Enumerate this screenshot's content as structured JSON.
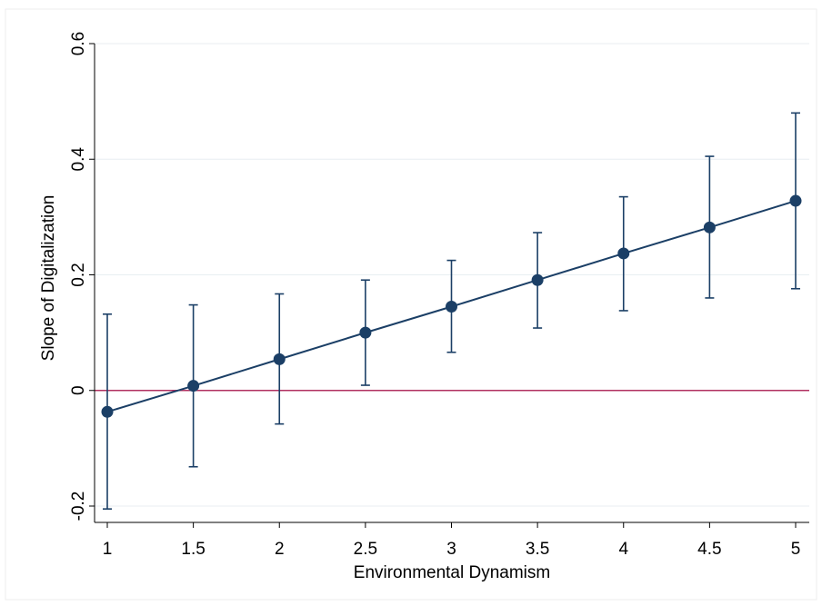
{
  "chart_data": {
    "type": "scatter",
    "title": "",
    "xlabel": "Environmental Dynamism",
    "ylabel": "Slope of Digitalization",
    "xlim": [
      1,
      5
    ],
    "ylim": [
      -0.2,
      0.6
    ],
    "x_ticks": [
      1,
      1.5,
      2,
      2.5,
      3,
      3.5,
      4,
      4.5,
      5
    ],
    "x_tick_labels": [
      "1",
      "1.5",
      "2",
      "2.5",
      "3",
      "3.5",
      "4",
      "4.5",
      "5"
    ],
    "y_ticks": [
      -0.2,
      0,
      0.2,
      0.4,
      0.6
    ],
    "y_tick_labels": [
      "-0.2",
      "0",
      "0.2",
      "0.4",
      "0.6"
    ],
    "grid": true,
    "reference_line": {
      "y": 0,
      "color": "#b03060"
    },
    "series": [
      {
        "x": [
          1,
          1.5,
          2,
          2.5,
          3,
          3.5,
          4,
          4.5,
          5
        ],
        "y": [
          -0.037,
          0.008,
          0.054,
          0.1,
          0.145,
          0.191,
          0.237,
          0.282,
          0.328
        ],
        "lower": [
          -0.205,
          -0.132,
          -0.058,
          0.009,
          0.066,
          0.108,
          0.138,
          0.16,
          0.176
        ],
        "upper": [
          0.132,
          0.148,
          0.167,
          0.191,
          0.225,
          0.273,
          0.335,
          0.405,
          0.48
        ],
        "color": "#1b3f66"
      }
    ],
    "colors": {
      "frame": "#ffffff",
      "grid": "#e8eef2",
      "axis": "#000000"
    }
  }
}
